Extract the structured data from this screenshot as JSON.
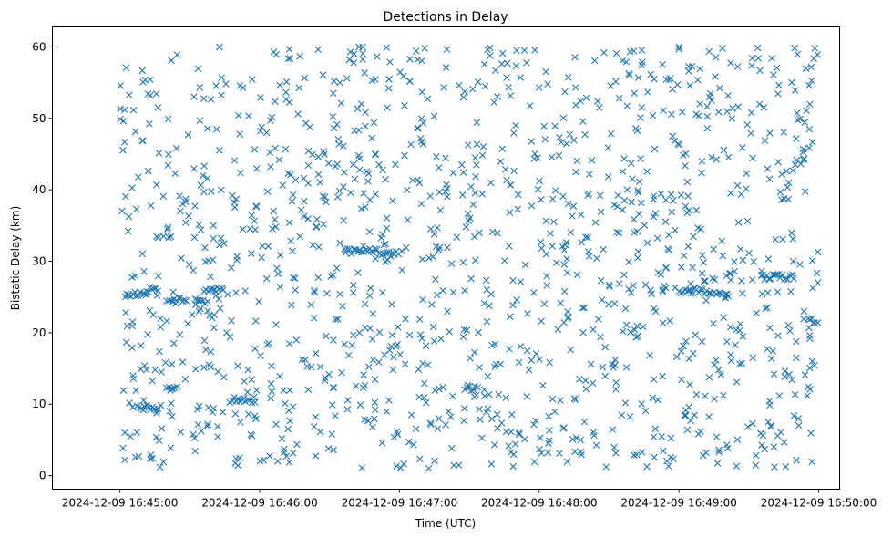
{
  "chart_data": {
    "type": "scatter",
    "title": "Detections in Delay",
    "xlabel": "Time (UTC)",
    "ylabel": "Bistatic Delay (km)",
    "x_start": "2024-12-09 16:45:00",
    "x_end": "2024-12-09 16:50:00",
    "xlim": [
      "2024-12-09 16:44:31",
      "2024-12-09 16:50:09"
    ],
    "ylim": [
      -1.9,
      62.8
    ],
    "x_ticks": [
      "2024-12-09 16:45:00",
      "2024-12-09 16:46:00",
      "2024-12-09 16:47:00",
      "2024-12-09 16:48:00",
      "2024-12-09 16:49:00",
      "2024-12-09 16:50:00"
    ],
    "y_ticks": [
      0,
      10,
      20,
      30,
      40,
      50,
      60
    ],
    "marker": "x",
    "color": "#1f77b4",
    "grid": false,
    "num_points": 1500,
    "delay_range_km": [
      1,
      60
    ],
    "clusters": [
      {
        "x_from": "2024-12-09 16:45:02",
        "x_to": "2024-12-09 16:45:12",
        "delay_km": 25.3
      },
      {
        "x_from": "2024-12-09 16:45:07",
        "x_to": "2024-12-09 16:45:18",
        "delay_km": 9.5
      },
      {
        "x_from": "2024-12-09 16:45:12",
        "x_to": "2024-12-09 16:45:17",
        "delay_km": 26.0
      },
      {
        "x_from": "2024-12-09 16:45:20",
        "x_to": "2024-12-09 16:45:29",
        "delay_km": 24.6
      },
      {
        "x_from": "2024-12-09 16:45:20",
        "x_to": "2024-12-09 16:45:25",
        "delay_km": 12.3
      },
      {
        "x_from": "2024-12-09 16:45:32",
        "x_to": "2024-12-09 16:45:38",
        "delay_km": 24.3
      },
      {
        "x_from": "2024-12-09 16:45:36",
        "x_to": "2024-12-09 16:45:45",
        "delay_km": 26.1
      },
      {
        "x_from": "2024-12-09 16:45:47",
        "x_to": "2024-12-09 16:45:58",
        "delay_km": 10.6
      },
      {
        "x_from": "2024-12-09 16:46:36",
        "x_to": "2024-12-09 16:46:52",
        "delay_km": 31.4
      },
      {
        "x_from": "2024-12-09 16:46:52",
        "x_to": "2024-12-09 16:47:00",
        "delay_km": 31.0
      },
      {
        "x_from": "2024-12-09 16:47:28",
        "x_to": "2024-12-09 16:47:34",
        "delay_km": 12.1
      },
      {
        "x_from": "2024-12-09 16:49:00",
        "x_to": "2024-12-09 16:49:15",
        "delay_km": 25.8
      },
      {
        "x_from": "2024-12-09 16:49:15",
        "x_to": "2024-12-09 16:49:22",
        "delay_km": 25.3
      },
      {
        "x_from": "2024-12-09 16:49:35",
        "x_to": "2024-12-09 16:49:50",
        "delay_km": 27.8
      },
      {
        "x_from": "2024-12-09 16:49:55",
        "x_to": "2024-12-09 16:50:00",
        "delay_km": 21.7
      }
    ]
  }
}
